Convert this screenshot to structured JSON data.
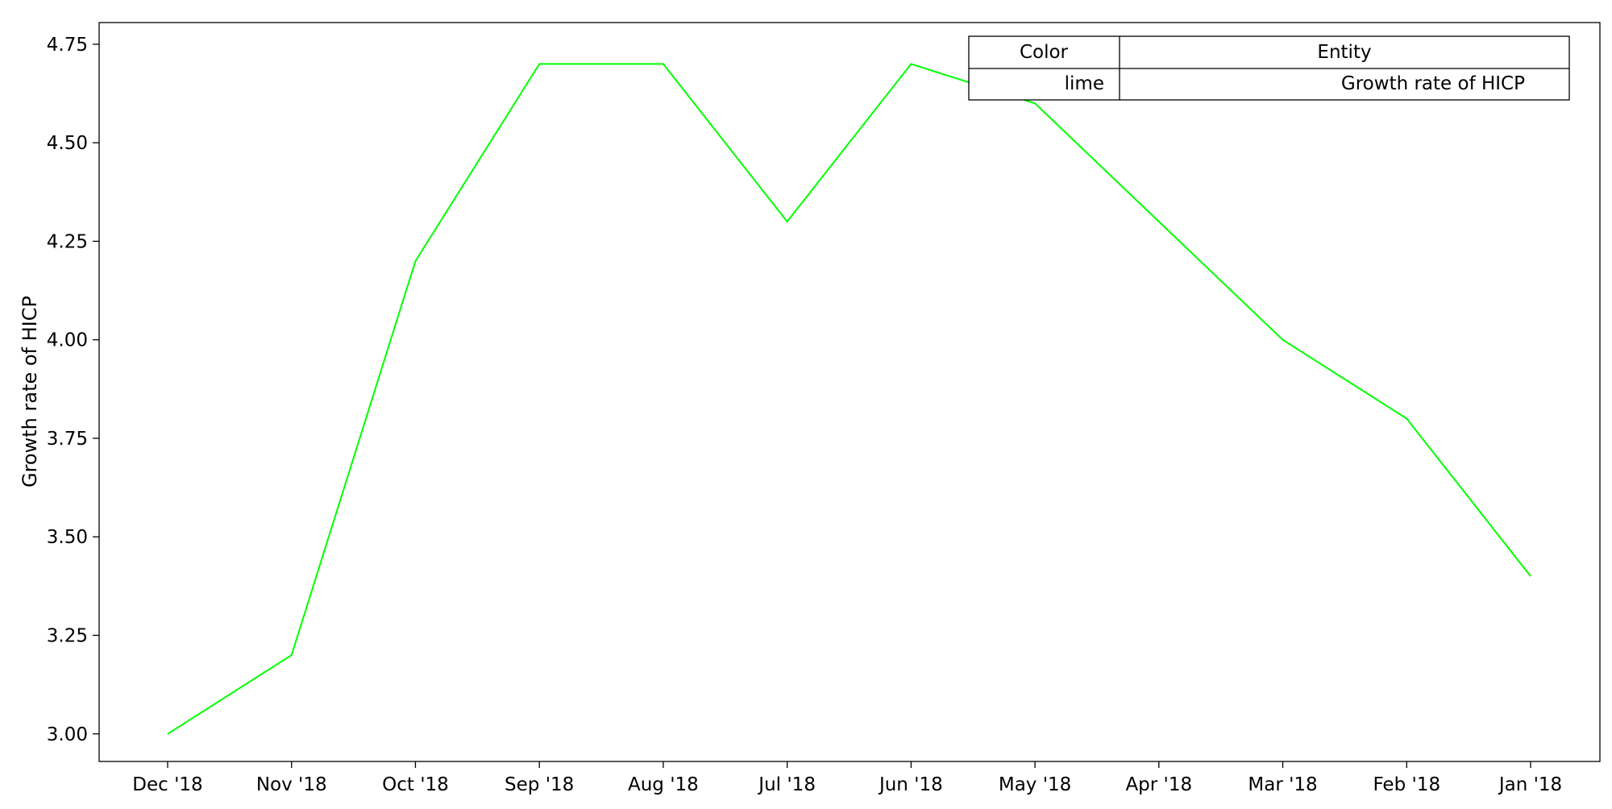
{
  "chart_data": {
    "type": "line",
    "title": "",
    "xlabel": "",
    "ylabel": "Growth rate of HICP",
    "x": [
      "Dec '18",
      "Nov '18",
      "Oct '18",
      "Sep '18",
      "Aug '18",
      "Jul '18",
      "Jun '18",
      "May '18",
      "Apr '18",
      "Mar '18",
      "Feb '18",
      "Jan '18"
    ],
    "yticks": [
      "3.00",
      "3.25",
      "3.50",
      "3.75",
      "4.00",
      "4.25",
      "4.50",
      "4.75"
    ],
    "ylim": [
      2.93,
      4.805
    ],
    "grid": false,
    "series": [
      {
        "name": "Growth rate of HICP",
        "color": "#00ff00",
        "values": [
          3.0,
          3.2,
          4.2,
          4.7,
          4.7,
          4.3,
          4.7,
          4.6,
          4.3,
          4.0,
          3.8,
          3.4
        ]
      }
    ],
    "legend": {
      "placement": "top-right",
      "headers": [
        "Color",
        "Entity"
      ],
      "rows": [
        {
          "color": "lime",
          "entity": "Growth rate of HICP"
        }
      ]
    }
  }
}
